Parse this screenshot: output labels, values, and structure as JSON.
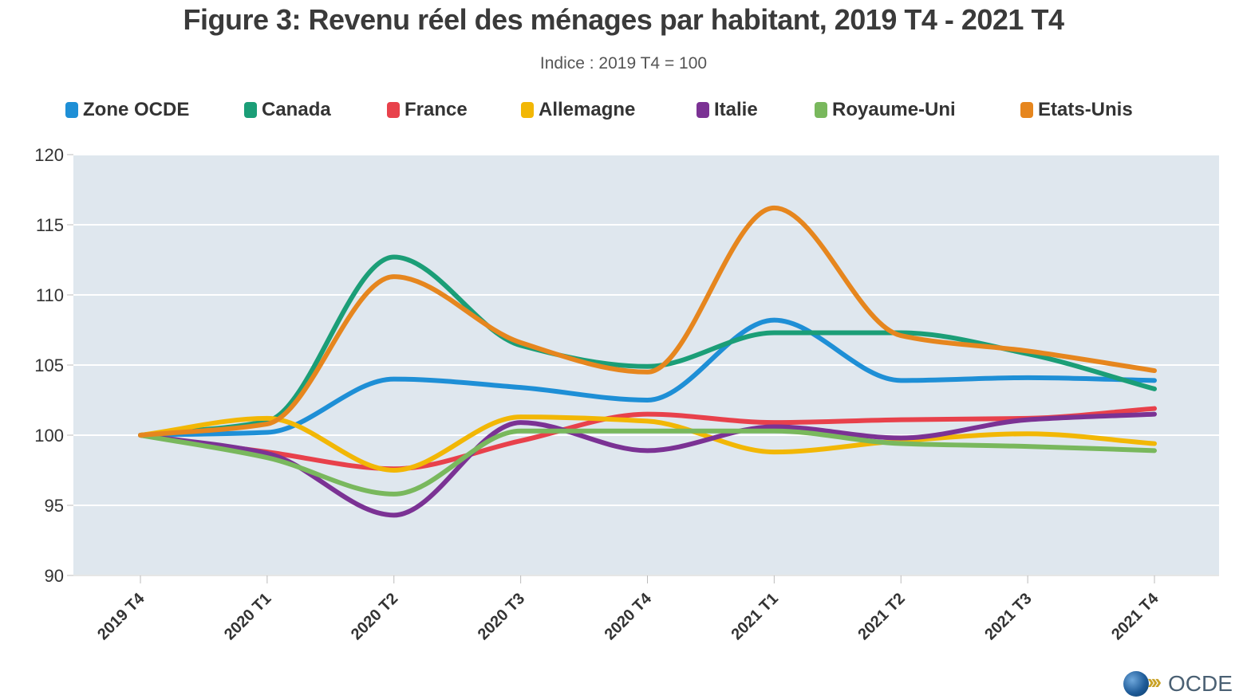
{
  "chart_data": {
    "type": "line",
    "title": "Figure 3: Revenu réel des ménages par habitant, 2019 T4 - 2021 T4",
    "subtitle": "Indice : 2019 T4 = 100",
    "xlabel": "",
    "ylabel": "",
    "ylim": [
      90,
      120
    ],
    "yticks": [
      "90",
      "95",
      "100",
      "105",
      "110",
      "115",
      "120"
    ],
    "categories": [
      "2019 T4",
      "2020 T1",
      "2020 T2",
      "2020 T3",
      "2020 T4",
      "2021 T1",
      "2021 T2",
      "2021 T3",
      "2021 T4"
    ],
    "grid": true,
    "legend_position": "top",
    "plot_background": "#dfe7ee",
    "series": [
      {
        "name": "Zone OCDE",
        "color": "#1e8fd6",
        "values": [
          100,
          100.2,
          104.0,
          103.4,
          102.5,
          108.2,
          103.9,
          104.1,
          103.9
        ]
      },
      {
        "name": "Canada",
        "color": "#1b9e77",
        "values": [
          100,
          101.0,
          112.7,
          106.4,
          104.9,
          107.3,
          107.3,
          105.8,
          103.3
        ]
      },
      {
        "name": "France",
        "color": "#e8414b",
        "values": [
          100,
          98.8,
          97.6,
          99.6,
          101.5,
          100.9,
          101.1,
          101.2,
          101.9
        ]
      },
      {
        "name": "Allemagne",
        "color": "#f2b705",
        "values": [
          100,
          101.2,
          97.5,
          101.3,
          101.0,
          98.8,
          99.6,
          100.1,
          99.4
        ]
      },
      {
        "name": "Italie",
        "color": "#7b3294",
        "values": [
          100,
          98.7,
          94.3,
          100.9,
          98.9,
          100.6,
          99.8,
          101.1,
          101.5
        ]
      },
      {
        "name": "Royaume-Uni",
        "color": "#79b85d",
        "values": [
          100,
          98.4,
          95.8,
          100.3,
          100.3,
          100.3,
          99.4,
          99.2,
          98.9
        ]
      },
      {
        "name": "Etats-Unis",
        "color": "#e6861e",
        "values": [
          100,
          100.8,
          111.3,
          106.6,
          104.5,
          116.2,
          107.1,
          106.0,
          104.6
        ]
      }
    ]
  },
  "logo": {
    "text": "OCDE",
    "icon": "oecd-globe-icon"
  }
}
